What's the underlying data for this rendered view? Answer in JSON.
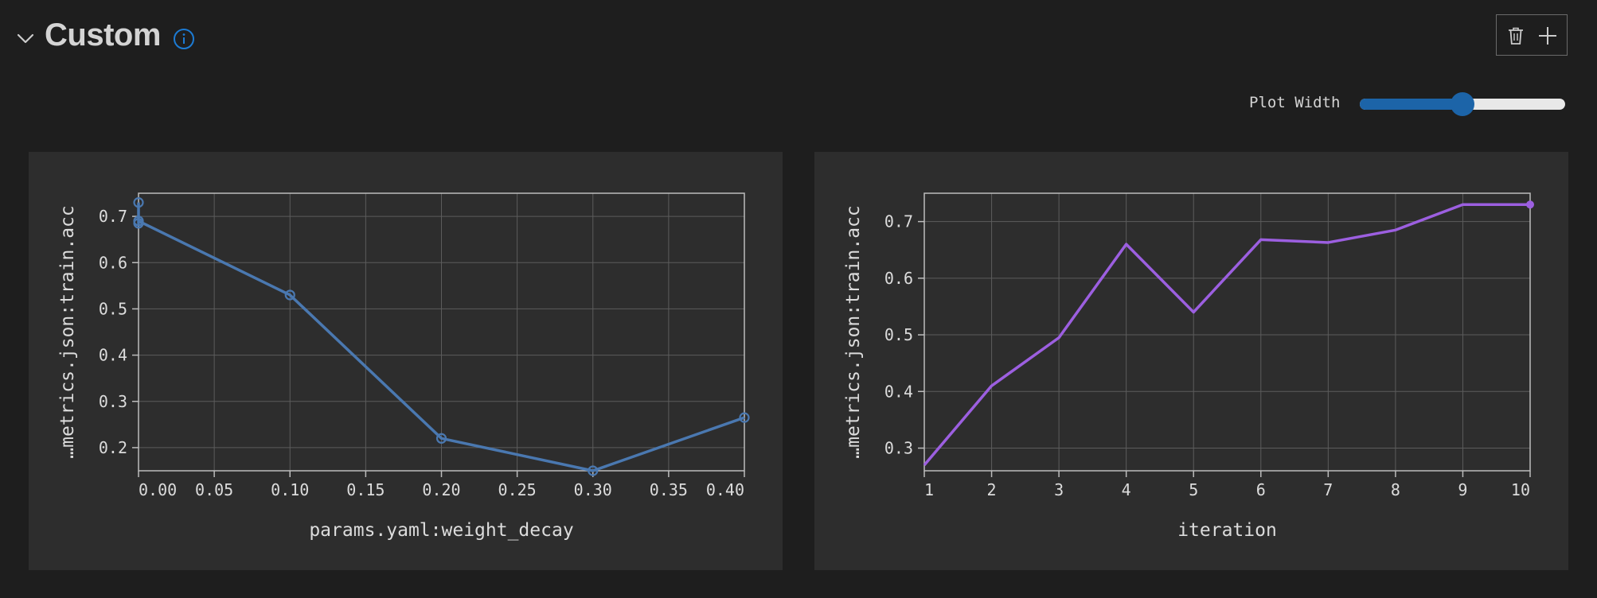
{
  "section": {
    "title": "Custom"
  },
  "icons": {
    "collapse": "chevron-down-icon",
    "info": "info-icon",
    "delete": "trash-icon",
    "add": "plus-icon"
  },
  "controls": {
    "plot_width_label": "Plot Width",
    "plot_width_value": 0.5
  },
  "colors": {
    "background": "#1e1e1e",
    "panel": "#2d2d2d",
    "accent": "#1c64a8",
    "series_blue": "#4a78b0",
    "series_purple": "#9c5fe0"
  },
  "chart_data": [
    {
      "type": "line",
      "xlabel": "params.yaml:weight_decay",
      "ylabel": "…metrics.json:train.acc",
      "xlim": [
        0,
        0.4
      ],
      "ylim": [
        0.15,
        0.75
      ],
      "xticks": [
        "0.00",
        "0.05",
        "0.10",
        "0.15",
        "0.20",
        "0.25",
        "0.30",
        "0.35",
        "0.40"
      ],
      "yticks": [
        "0.2",
        "0.3",
        "0.4",
        "0.5",
        "0.6",
        "0.7"
      ],
      "grid": true,
      "markers": "open-circle",
      "series": [
        {
          "color": "#4a78b0",
          "points": [
            {
              "x": 0.0,
              "y": 0.73
            },
            {
              "x": 0.0,
              "y": 0.685
            },
            {
              "x": 0.0,
              "y": 0.69
            },
            {
              "x": 0.1,
              "y": 0.53
            },
            {
              "x": 0.2,
              "y": 0.22
            },
            {
              "x": 0.3,
              "y": 0.15
            },
            {
              "x": 0.4,
              "y": 0.265
            }
          ]
        }
      ]
    },
    {
      "type": "line",
      "xlabel": "iteration",
      "ylabel": "…metrics.json:train.acc",
      "xlim": [
        1,
        10
      ],
      "ylim": [
        0.26,
        0.75
      ],
      "xticks": [
        "1",
        "2",
        "3",
        "4",
        "5",
        "6",
        "7",
        "8",
        "9",
        "10"
      ],
      "yticks": [
        "0.3",
        "0.4",
        "0.5",
        "0.6",
        "0.7"
      ],
      "grid": true,
      "markers": "last-point",
      "series": [
        {
          "color": "#9c5fe0",
          "points": [
            {
              "x": 1,
              "y": 0.27
            },
            {
              "x": 2,
              "y": 0.41
            },
            {
              "x": 3,
              "y": 0.495
            },
            {
              "x": 4,
              "y": 0.66
            },
            {
              "x": 5,
              "y": 0.54
            },
            {
              "x": 6,
              "y": 0.668
            },
            {
              "x": 7,
              "y": 0.663
            },
            {
              "x": 8,
              "y": 0.685
            },
            {
              "x": 9,
              "y": 0.73
            },
            {
              "x": 10,
              "y": 0.73
            }
          ]
        }
      ]
    }
  ]
}
